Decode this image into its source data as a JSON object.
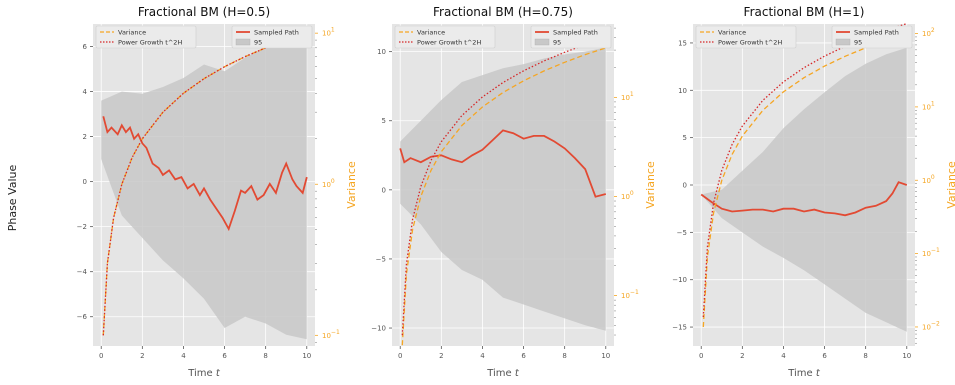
{
  "figure": {
    "shared_ylabel": "Phase Value",
    "right_axis_label": "Variance",
    "xlabel": "Time t"
  },
  "colors": {
    "plot_bg": "#e5e5e5",
    "grid": "#ffffff",
    "path": "#e24a33",
    "band": "#c8c8c8",
    "variance": "#f5a623",
    "power": "#d62728",
    "axis_text": "#555555"
  },
  "chart_data": [
    {
      "type": "line",
      "title": "Fractional BM (H=0.5)",
      "xlabel": "Time t",
      "ylabel": "Phase Value",
      "y2label": "Variance",
      "xlim": [
        -0.4,
        10.4
      ],
      "xticks": [
        0,
        2,
        4,
        6,
        8,
        10
      ],
      "ylim": [
        -7.3,
        7.0
      ],
      "yticks": [
        -6,
        -4,
        -2,
        0,
        2,
        4,
        6
      ],
      "y2scale": "log",
      "y2ticks": [
        "10^-1",
        "10^0",
        "10^1"
      ],
      "legend_left": [
        "Variance",
        "Power Growth t^2H"
      ],
      "legend_right": [
        "Sampled Path",
        "95"
      ],
      "series": [
        {
          "name": "Sampled Path",
          "x": [
            0.1,
            0.3,
            0.5,
            0.8,
            1.0,
            1.2,
            1.4,
            1.6,
            1.8,
            2.0,
            2.2,
            2.5,
            2.8,
            3.0,
            3.3,
            3.6,
            3.9,
            4.2,
            4.5,
            4.8,
            5.0,
            5.3,
            5.6,
            5.9,
            6.2,
            6.5,
            6.8,
            7.0,
            7.3,
            7.6,
            7.9,
            8.2,
            8.5,
            8.8,
            9.0,
            9.3,
            9.5,
            9.8,
            10.0
          ],
          "y": [
            2.9,
            2.2,
            2.4,
            2.1,
            2.5,
            2.2,
            2.4,
            1.9,
            2.1,
            1.7,
            1.5,
            0.8,
            0.6,
            0.3,
            0.5,
            0.1,
            0.2,
            -0.3,
            -0.1,
            -0.6,
            -0.3,
            -0.8,
            -1.2,
            -1.6,
            -2.1,
            -1.3,
            -0.4,
            -0.5,
            -0.2,
            -0.8,
            -0.6,
            -0.1,
            -0.5,
            0.4,
            0.8,
            0.1,
            -0.2,
            -0.5,
            0.2
          ]
        },
        {
          "name": "95",
          "x": [
            0,
            1,
            2,
            3,
            4,
            5,
            6,
            7,
            8,
            9,
            10
          ],
          "lower": [
            1.0,
            -1.5,
            -2.5,
            -3.5,
            -4.3,
            -5.2,
            -6.5,
            -6.0,
            -6.3,
            -6.8,
            -7.0
          ],
          "upper": [
            3.6,
            4.0,
            3.9,
            4.2,
            4.6,
            5.2,
            4.9,
            5.5,
            6.0,
            6.6,
            6.9
          ]
        },
        {
          "name": "Variance",
          "x": [
            0.1,
            0.3,
            0.6,
            1,
            1.5,
            2,
            3,
            4,
            5,
            6,
            7,
            8,
            9,
            10
          ],
          "y": [
            0.1,
            0.3,
            0.6,
            1,
            1.5,
            2,
            3,
            4,
            5,
            6,
            7,
            8,
            9,
            10
          ]
        },
        {
          "name": "Power Growth t^2H",
          "x": [
            0.1,
            0.3,
            0.6,
            1,
            1.5,
            2,
            3,
            4,
            5,
            6,
            7,
            8,
            9,
            10
          ],
          "y": [
            0.1,
            0.3,
            0.6,
            1,
            1.5,
            2,
            3,
            4,
            5,
            6,
            7,
            8,
            9,
            10
          ]
        }
      ],
      "y2lim": [
        0.085,
        11.5
      ]
    },
    {
      "type": "line",
      "title": "Fractional BM (H=0.75)",
      "xlabel": "Time t",
      "ylabel": "",
      "y2label": "Variance",
      "xlim": [
        -0.4,
        10.4
      ],
      "xticks": [
        0,
        2,
        4,
        6,
        8,
        10
      ],
      "ylim": [
        -11.3,
        12.0
      ],
      "yticks": [
        -10,
        -5,
        0,
        5,
        10
      ],
      "y2scale": "log",
      "y2ticks": [
        "10^-1",
        "10^0",
        "10^1"
      ],
      "legend_left": [
        "Variance",
        "Power Growth t^2H"
      ],
      "legend_right": [
        "Sampled Path",
        "95"
      ],
      "series": [
        {
          "name": "Sampled Path",
          "x": [
            0,
            0.2,
            0.5,
            1,
            1.5,
            2,
            2.5,
            3,
            3.5,
            4,
            4.5,
            5,
            5.5,
            6,
            6.5,
            7,
            7.5,
            8,
            8.5,
            9,
            9.5,
            10
          ],
          "y": [
            3.0,
            2.0,
            2.3,
            2.0,
            2.4,
            2.5,
            2.2,
            2.0,
            2.5,
            2.9,
            3.6,
            4.3,
            4.1,
            3.7,
            3.9,
            3.9,
            3.5,
            3.0,
            2.3,
            1.5,
            -0.5,
            -0.3
          ]
        },
        {
          "name": "95",
          "x": [
            0,
            1,
            2,
            3,
            4,
            5,
            6,
            7,
            8,
            9,
            10
          ],
          "lower": [
            -1.0,
            -2.5,
            -4.5,
            -5.8,
            -6.5,
            -7.8,
            -8.3,
            -8.8,
            -9.3,
            -9.8,
            -10.2
          ],
          "upper": [
            3.5,
            5.0,
            6.5,
            7.8,
            8.3,
            8.8,
            9.1,
            9.5,
            9.8,
            10.0,
            10.3
          ]
        },
        {
          "name": "Variance",
          "x": [
            0.1,
            0.3,
            0.6,
            1,
            1.5,
            2,
            3,
            4,
            5,
            6,
            7,
            8,
            9,
            10
          ],
          "y": [
            0.0316,
            0.164,
            0.465,
            1,
            1.84,
            2.83,
            5.2,
            8,
            11.2,
            14.7,
            18.5,
            22.6,
            27,
            31.6
          ]
        },
        {
          "name": "Power Growth t^2H",
          "x": [
            0.1,
            0.3,
            0.6,
            1,
            1.5,
            2,
            3,
            4,
            5,
            6,
            7,
            8,
            9,
            10
          ],
          "y": [
            0.0316,
            0.164,
            0.465,
            1,
            1.84,
            2.83,
            5.2,
            8,
            11.2,
            14.7,
            18.5,
            22.6,
            27,
            31.6
          ]
        }
      ],
      "y2lim": [
        0.031,
        55
      ]
    },
    {
      "type": "line",
      "title": "Fractional BM (H=1)",
      "xlabel": "Time t",
      "ylabel": "",
      "y2label": "Variance",
      "xlim": [
        -0.4,
        10.4
      ],
      "xticks": [
        0,
        2,
        4,
        6,
        8,
        10
      ],
      "ylim": [
        -17,
        17.0
      ],
      "yticks": [
        -15,
        -10,
        -5,
        0,
        5,
        10,
        15
      ],
      "y2scale": "log",
      "y2ticks": [
        "10^-2",
        "10^-1",
        "10^0",
        "10^1",
        "10^2"
      ],
      "legend_left": [
        "Variance",
        "Power Growth t^2H"
      ],
      "legend_right": [
        "Sampled Path",
        "95"
      ],
      "series": [
        {
          "name": "Sampled Path",
          "x": [
            0,
            0.5,
            1,
            1.5,
            2,
            2.5,
            3,
            3.5,
            4,
            4.5,
            5,
            5.5,
            6,
            6.5,
            7,
            7.5,
            8,
            8.5,
            9,
            9.3,
            9.6,
            10
          ],
          "y": [
            -1.0,
            -1.8,
            -2.5,
            -2.8,
            -2.7,
            -2.6,
            -2.6,
            -2.8,
            -2.5,
            -2.5,
            -2.8,
            -2.6,
            -2.9,
            -3.0,
            -3.2,
            -2.9,
            -2.4,
            -2.2,
            -1.7,
            -0.9,
            0.3,
            0.0
          ]
        },
        {
          "name": "95",
          "x": [
            0,
            1,
            2,
            3,
            4,
            5,
            6,
            7,
            8,
            9,
            10
          ],
          "lower": [
            -1.0,
            -3.5,
            -5.0,
            -6.5,
            -7.7,
            -9.0,
            -10.5,
            -12.0,
            -13.5,
            -14.5,
            -15.5
          ],
          "upper": [
            -1.0,
            -0.5,
            1.5,
            3.5,
            6.0,
            8.0,
            9.8,
            11.5,
            12.8,
            13.8,
            14.5
          ]
        },
        {
          "name": "Variance",
          "x": [
            0.1,
            0.3,
            0.6,
            1,
            1.5,
            2,
            3,
            4,
            5,
            6,
            7,
            8,
            9,
            10
          ],
          "y": [
            0.01,
            0.09,
            0.36,
            1,
            2.25,
            4,
            9,
            16,
            25,
            36,
            49,
            64,
            81,
            100
          ]
        },
        {
          "name": "Power Growth t^2H",
          "x": [
            0.1,
            0.3,
            0.6,
            1,
            1.5,
            2,
            3,
            4,
            5,
            6,
            7,
            8,
            9,
            10
          ],
          "y": [
            0.01,
            0.09,
            0.36,
            1,
            2.25,
            4,
            9,
            16,
            25,
            36,
            49,
            64,
            81,
            100
          ]
        }
      ],
      "y2lim": [
        0.0055,
        135
      ]
    }
  ]
}
